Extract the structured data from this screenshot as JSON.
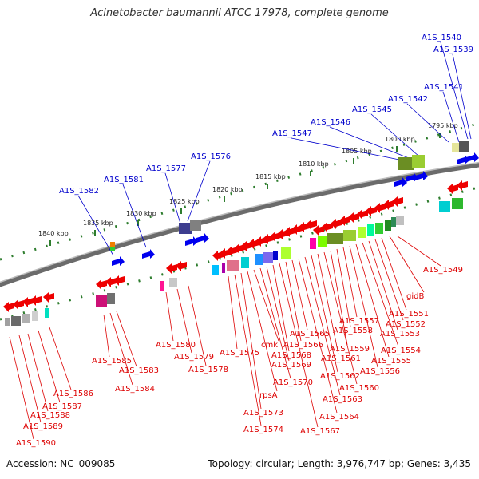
{
  "header": {
    "title": "Acinetobacter baumannii ATCC 17978, complete genome"
  },
  "footer": {
    "accession": "Accession: NC_009085",
    "summary": "Topology: circular; Length: 3,976,747 bp; Genes: 3,435"
  },
  "map": {
    "colors": {
      "forward_labels": "#0000cc",
      "reverse_labels": "#dd0000",
      "tick": "#2e7d2e",
      "backbone": "#6b6b6b"
    },
    "kbp_ticks": [
      "1795 kbp",
      "1800 kbp",
      "1805 kbp",
      "1810 kbp",
      "1815 kbp",
      "1820 kbp",
      "1825 kbp",
      "1830 kbp",
      "1835 kbp",
      "1840 kbp"
    ],
    "forward_genes": [
      "A1S_1540",
      "A1S_1539",
      "A1S_1541",
      "A1S_1542",
      "A1S_1545",
      "A1S_1546",
      "A1S_1547",
      "A1S_1576",
      "A1S_1577",
      "A1S_1581",
      "A1S_1582"
    ],
    "reverse_genes": [
      "A1S_1549",
      "gidB",
      "A1S_1551",
      "A1S_1552",
      "A1S_1553",
      "A1S_1554",
      "A1S_1555",
      "A1S_1556",
      "A1S_1557",
      "A1S_1558",
      "A1S_1559",
      "A1S_1560",
      "A1S_1561",
      "A1S_1562",
      "A1S_1563",
      "A1S_1564",
      "A1S_1565",
      "A1S_1566",
      "A1S_1567",
      "A1S_1568",
      "A1S_1569",
      "A1S_1570",
      "cmk",
      "rpsA",
      "A1S_1573",
      "A1S_1574",
      "A1S_1575",
      "A1S_1578",
      "A1S_1579",
      "A1S_1580",
      "A1S_1583",
      "A1S_1584",
      "A1S_1585",
      "A1S_1586",
      "A1S_1587",
      "A1S_1588",
      "A1S_1589",
      "A1S_1590"
    ]
  }
}
